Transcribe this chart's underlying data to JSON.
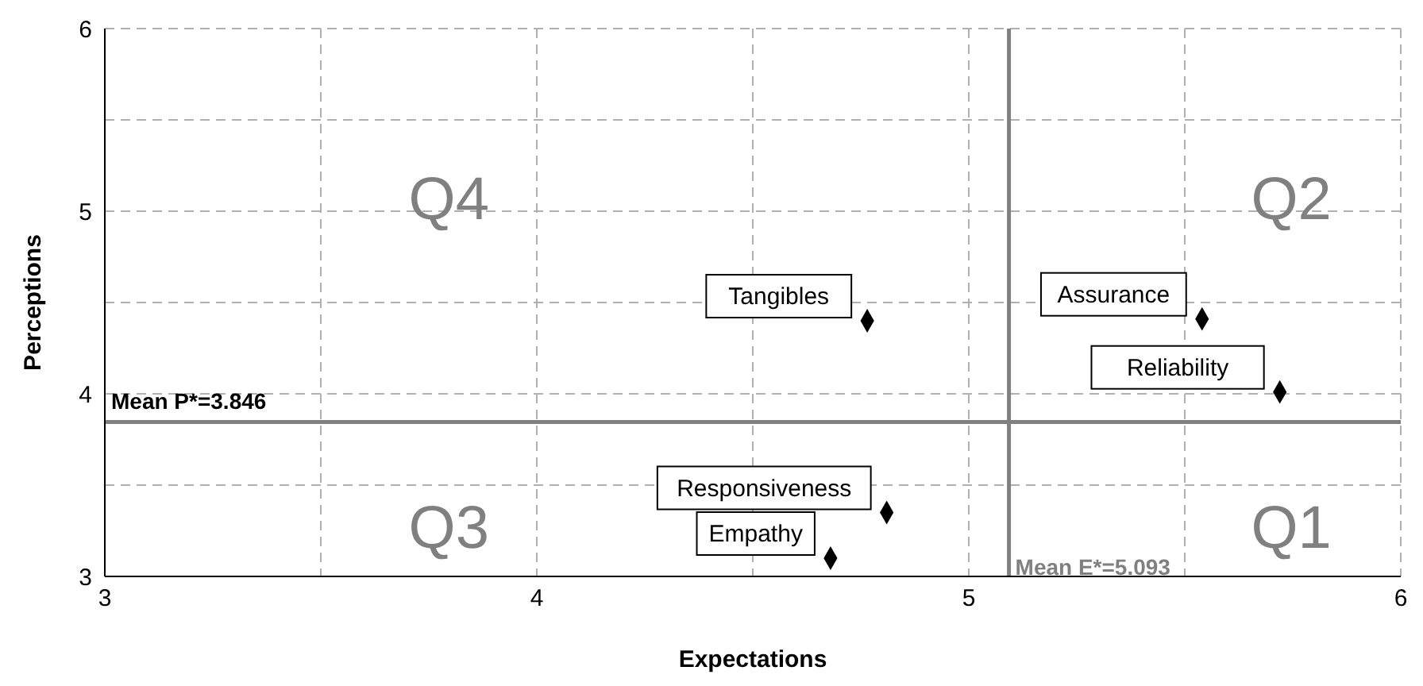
{
  "chart_data": {
    "type": "scatter",
    "xlabel": "Expectations",
    "ylabel": "Perceptions",
    "x": [
      4.765,
      5.54,
      5.72,
      4.81,
      4.68
    ],
    "values": [
      4.4,
      4.41,
      4.01,
      3.35,
      3.1
    ],
    "color": "#000000",
    "marker": "diamond",
    "grid": true,
    "xlim": [
      3,
      6
    ],
    "xticks": [
      3,
      {
        "value": 3.5,
        "label": null
      },
      4,
      {
        "value": 4.5,
        "label": null
      },
      5,
      {
        "value": 5.5,
        "label": null
      },
      6
    ],
    "ylim": [
      3,
      6
    ],
    "yticks": [
      3,
      {
        "value": 3.5,
        "label": null
      },
      4,
      {
        "value": 4.5,
        "label": null
      },
      5,
      {
        "value": 5.5,
        "label": null
      },
      6
    ],
    "ref_lines": [
      {
        "axis": "x",
        "value": 5.093,
        "label": "Mean E*=5.093",
        "color": "#808080"
      },
      {
        "axis": "y",
        "value": 3.846,
        "label": "Mean P*=3.846",
        "color": "#808080"
      }
    ],
    "annotations": [
      "Q4",
      "Q2",
      "Q3",
      "Q1",
      {
        "text": "Tangibles",
        "x": 4.765,
        "y": 4.4
      },
      {
        "text": "Assurance",
        "x": 5.54,
        "y": 4.41
      },
      {
        "text": "Reliability",
        "x": 5.72,
        "y": 4.01
      },
      {
        "text": "Responsiveness",
        "x": 4.81,
        "y": 3.35
      },
      {
        "text": "Empathy",
        "x": 4.68,
        "y": 3.1
      }
    ]
  }
}
